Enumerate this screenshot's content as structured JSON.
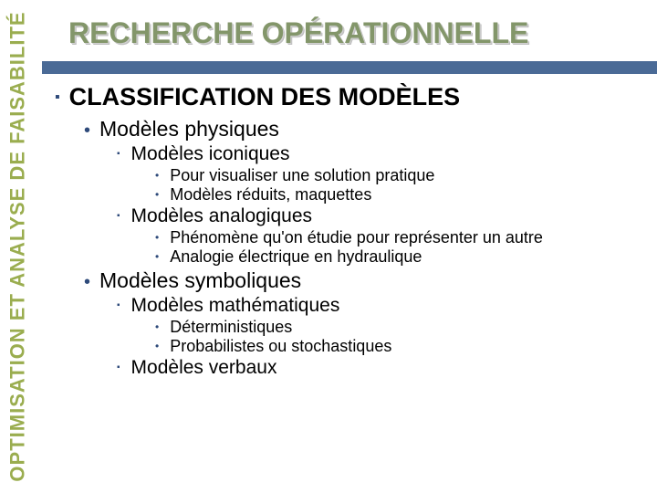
{
  "sidebar": {
    "text": "OPTIMISATION ET ANALYSE DE FAISABILITÉ"
  },
  "title": "RECHERCHE OPÉRATIONNELLE",
  "rule_color": "#4a6a96",
  "heading": "CLASSIFICATION DES MODÈLES",
  "colors": {
    "sidebar_text": "#9aad4f",
    "title_text": "#83966a",
    "bullet": "#2e4a7a",
    "body_text": "#000000",
    "background": "#ffffff"
  },
  "sec": {
    "a": {
      "title": "Modèles physiques",
      "i": {
        "title": "Modèles iconiques",
        "p1": "Pour visualiser une solution pratique",
        "p2": "Modèles réduits, maquettes"
      },
      "ii": {
        "title": "Modèles analogiques",
        "p1": "Phénomène qu'on étudie pour représenter un autre",
        "p2": "Analogie électrique en hydraulique"
      }
    },
    "b": {
      "title": "Modèles symboliques",
      "i": {
        "title": "Modèles mathématiques",
        "p1": "Déterministiques",
        "p2": "Probabilistes ou stochastiques"
      },
      "ii": {
        "title": "Modèles verbaux"
      }
    }
  }
}
